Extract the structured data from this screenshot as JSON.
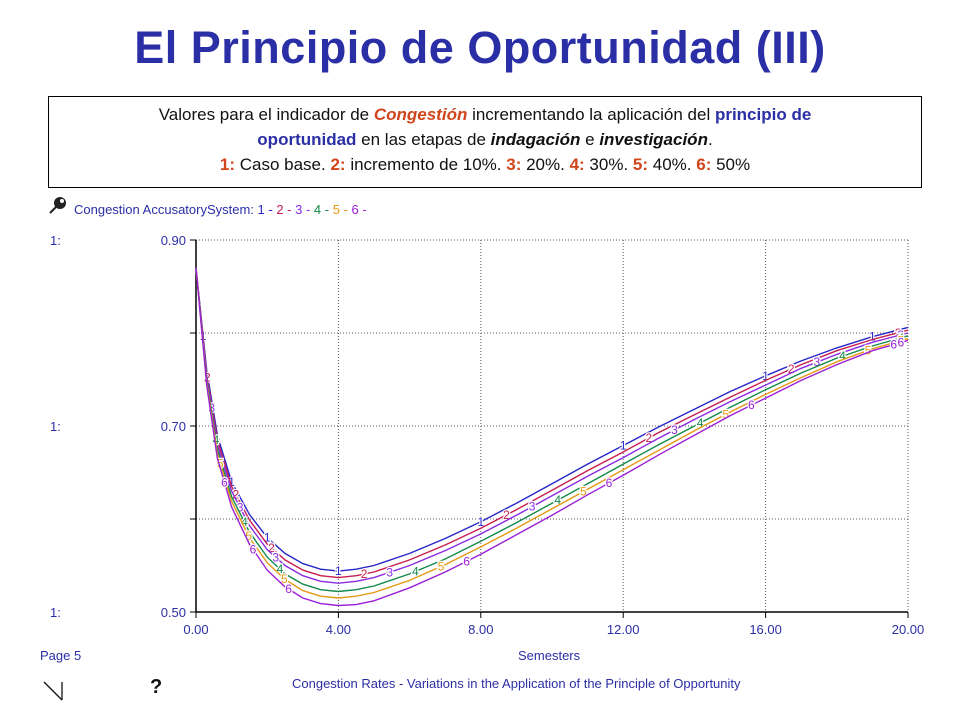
{
  "title": "El Principio de Oportunidad (III)",
  "description": {
    "line1_pre": "Valores para el indicador de ",
    "line1_highlight": "Congestión",
    "line1_mid": " incrementando la aplicación del ",
    "line1_principle": "principio de",
    "line2_principle": "oportunidad",
    "line2_mid": " en las etapas de ",
    "line2_ind": "indagación",
    "line2_e": " e ",
    "line2_inv": "investigación",
    "line2_end": ".",
    "line3": [
      {
        "num": "1:",
        "text": " Caso base.  "
      },
      {
        "num": "2:",
        "text": " incremento de 10%.  "
      },
      {
        "num": "3:",
        "text": " 20%.  "
      },
      {
        "num": "4:",
        "text": " 30%.  "
      },
      {
        "num": "5:",
        "text": " 40%.  "
      },
      {
        "num": "6:",
        "text": " 50%"
      }
    ]
  },
  "legend": {
    "prefix": "Congestion AccusatorySystem: ",
    "entries": [
      "1",
      "2",
      "3",
      "4",
      "5",
      "6"
    ]
  },
  "footer": {
    "page": "Page 5",
    "xlabel": "Semesters",
    "caption": "Congestion Rates - Variations in the Application of the Principle of Opportunity",
    "question": "?"
  },
  "chart_data": {
    "type": "line",
    "x_ticks": [
      "0.00",
      "4.00",
      "8.00",
      "12.00",
      "16.00",
      "20.00"
    ],
    "y_ticks": [
      "0.50",
      "0.70",
      "0.90"
    ],
    "y_tick_prefix": "1:",
    "xlim": [
      0,
      20
    ],
    "ylim": [
      0.5,
      0.9
    ],
    "grid": true,
    "series": [
      {
        "name": "1",
        "color": "#2727c9",
        "x": [
          0,
          0.3,
          0.6,
          1.0,
          1.5,
          2.0,
          2.5,
          3.0,
          3.5,
          4.0,
          4.5,
          5.0,
          6.0,
          7.0,
          8.0,
          9.0,
          10.0,
          11.0,
          12.0,
          13.0,
          14.0,
          15.0,
          16.0,
          17.0,
          18.0,
          19.0,
          20.0
        ],
        "y": [
          0.87,
          0.76,
          0.69,
          0.64,
          0.605,
          0.58,
          0.563,
          0.552,
          0.546,
          0.544,
          0.546,
          0.55,
          0.563,
          0.579,
          0.597,
          0.617,
          0.638,
          0.659,
          0.679,
          0.699,
          0.718,
          0.737,
          0.754,
          0.77,
          0.784,
          0.796,
          0.806
        ]
      },
      {
        "name": "2",
        "color": "#c81e4e",
        "x": [
          0,
          0.3,
          0.6,
          1.0,
          1.5,
          2.0,
          2.5,
          3.0,
          3.5,
          4.0,
          4.5,
          5.0,
          6.0,
          7.0,
          8.0,
          9.0,
          10.0,
          11.0,
          12.0,
          13.0,
          14.0,
          15.0,
          16.0,
          17.0,
          18.0,
          19.0,
          20.0
        ],
        "y": [
          0.87,
          0.757,
          0.685,
          0.635,
          0.599,
          0.573,
          0.556,
          0.545,
          0.539,
          0.537,
          0.539,
          0.543,
          0.556,
          0.572,
          0.59,
          0.61,
          0.631,
          0.652,
          0.672,
          0.693,
          0.712,
          0.731,
          0.749,
          0.766,
          0.781,
          0.793,
          0.803
        ]
      },
      {
        "name": "3",
        "color": "#8a2be2",
        "x": [
          0,
          0.3,
          0.6,
          1.0,
          1.5,
          2.0,
          2.5,
          3.0,
          3.5,
          4.0,
          4.5,
          5.0,
          6.0,
          7.0,
          8.0,
          9.0,
          10.0,
          11.0,
          12.0,
          13.0,
          14.0,
          15.0,
          16.0,
          17.0,
          18.0,
          19.0,
          20.0
        ],
        "y": [
          0.87,
          0.754,
          0.68,
          0.63,
          0.593,
          0.567,
          0.55,
          0.539,
          0.533,
          0.531,
          0.533,
          0.537,
          0.55,
          0.566,
          0.584,
          0.604,
          0.625,
          0.646,
          0.666,
          0.687,
          0.707,
          0.726,
          0.744,
          0.762,
          0.777,
          0.79,
          0.8
        ]
      },
      {
        "name": "4",
        "color": "#128a4a",
        "x": [
          0,
          0.3,
          0.6,
          1.0,
          1.5,
          2.0,
          2.5,
          3.0,
          3.5,
          4.0,
          4.5,
          5.0,
          6.0,
          7.0,
          8.0,
          9.0,
          10.0,
          11.0,
          12.0,
          13.0,
          14.0,
          15.0,
          16.0,
          17.0,
          18.0,
          19.0,
          20.0
        ],
        "y": [
          0.87,
          0.75,
          0.675,
          0.624,
          0.586,
          0.559,
          0.541,
          0.53,
          0.524,
          0.522,
          0.524,
          0.528,
          0.541,
          0.557,
          0.576,
          0.596,
          0.617,
          0.638,
          0.659,
          0.68,
          0.7,
          0.72,
          0.739,
          0.757,
          0.773,
          0.786,
          0.797
        ]
      },
      {
        "name": "5",
        "color": "#e39a14",
        "x": [
          0,
          0.3,
          0.6,
          1.0,
          1.5,
          2.0,
          2.5,
          3.0,
          3.5,
          4.0,
          4.5,
          5.0,
          6.0,
          7.0,
          8.0,
          9.0,
          10.0,
          11.0,
          12.0,
          13.0,
          14.0,
          15.0,
          16.0,
          17.0,
          18.0,
          19.0,
          20.0
        ],
        "y": [
          0.87,
          0.747,
          0.67,
          0.619,
          0.58,
          0.553,
          0.535,
          0.523,
          0.517,
          0.515,
          0.517,
          0.521,
          0.534,
          0.551,
          0.57,
          0.59,
          0.611,
          0.632,
          0.653,
          0.674,
          0.695,
          0.715,
          0.734,
          0.752,
          0.769,
          0.783,
          0.794
        ]
      },
      {
        "name": "6",
        "color": "#9b1fd6",
        "x": [
          0,
          0.3,
          0.6,
          1.0,
          1.5,
          2.0,
          2.5,
          3.0,
          3.5,
          4.0,
          4.5,
          5.0,
          6.0,
          7.0,
          8.0,
          9.0,
          10.0,
          11.0,
          12.0,
          13.0,
          14.0,
          15.0,
          16.0,
          17.0,
          18.0,
          19.0,
          20.0
        ],
        "y": [
          0.87,
          0.744,
          0.665,
          0.613,
          0.573,
          0.545,
          0.527,
          0.515,
          0.509,
          0.507,
          0.508,
          0.512,
          0.526,
          0.543,
          0.562,
          0.583,
          0.604,
          0.626,
          0.647,
          0.669,
          0.69,
          0.711,
          0.73,
          0.749,
          0.766,
          0.781,
          0.792
        ]
      }
    ],
    "marker_x": [
      0.2,
      1.0,
      2.0,
      4.0,
      8.0,
      12.0,
      16.0,
      19.0
    ]
  }
}
